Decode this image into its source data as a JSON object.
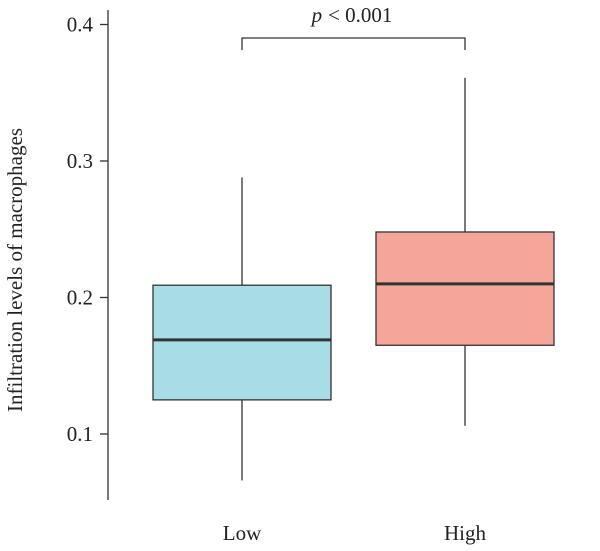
{
  "chart_data": {
    "type": "box",
    "ylabel": "Infiltration levels of macrophages",
    "ylim": [
      0.05,
      0.42
    ],
    "yticks": [
      0.1,
      0.2,
      0.3,
      0.4
    ],
    "ytick_labels": [
      "0.1",
      "0.2",
      "0.3",
      "0.4"
    ],
    "categories": [
      "Low",
      "High"
    ],
    "boxes": [
      {
        "category": "Low",
        "whisker_low": 0.066,
        "q1": 0.125,
        "median": 0.169,
        "q3": 0.209,
        "whisker_high": 0.288,
        "color": "#a8dde7"
      },
      {
        "category": "High",
        "whisker_low": 0.106,
        "q1": 0.165,
        "median": 0.21,
        "q3": 0.248,
        "whisker_high": 0.361,
        "color": "#f4a69b"
      }
    ],
    "annotation": {
      "p_symbol": "p",
      "text": "< 0.001",
      "between": [
        "Low",
        "High"
      ]
    },
    "grid": false,
    "legend": "none"
  }
}
